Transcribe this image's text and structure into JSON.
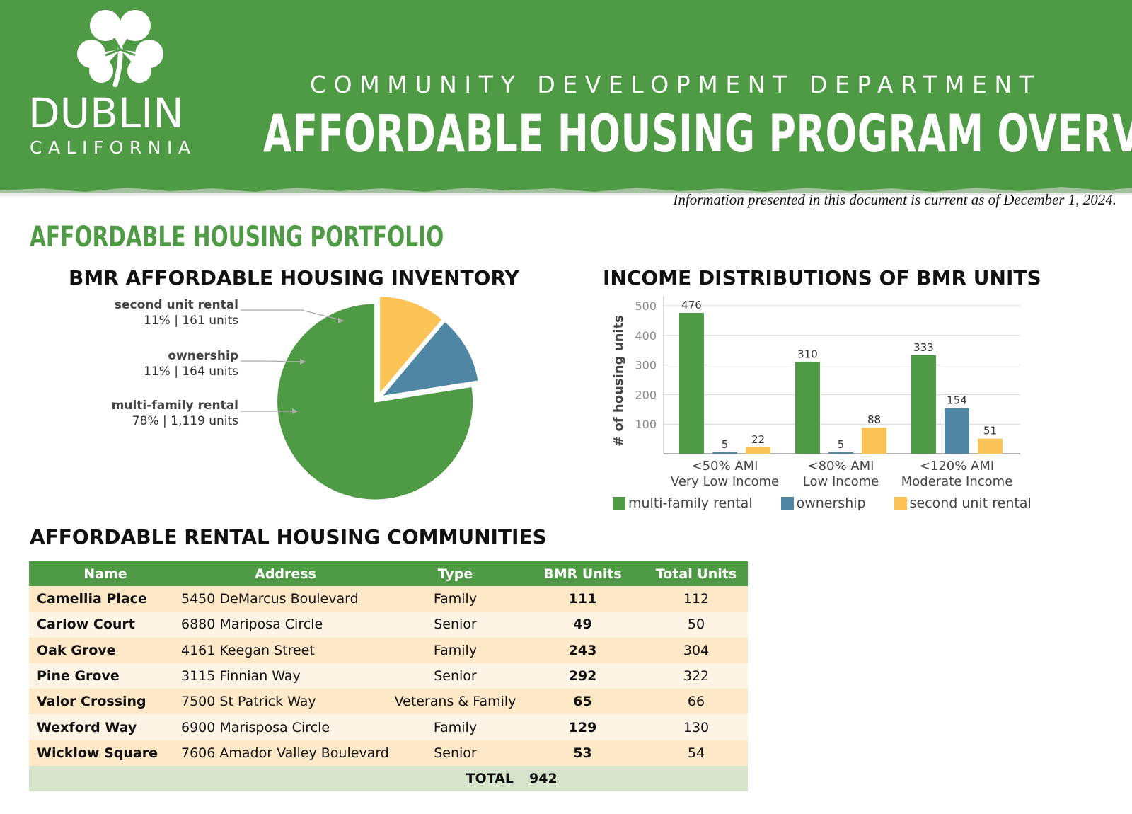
{
  "header": {
    "logo_title": "DUBLIN",
    "logo_subtitle": "CALIFORNIA",
    "department": "COMMUNITY DEVELOPMENT DEPARTMENT",
    "title": "AFFORDABLE HOUSING PROGRAM OVERVIEW"
  },
  "info_note": "Information presented in this document is current as of December 1, 2024.",
  "section_title": "AFFORDABLE HOUSING PORTFOLIO",
  "colors": {
    "green": "#4f9a45",
    "blue": "#4f86a3",
    "yellow": "#fcc357"
  },
  "chart_data": [
    {
      "type": "pie",
      "title": "BMR AFFORDABLE HOUSING INVENTORY",
      "slices": [
        {
          "name": "second unit rental",
          "percent_label": "11%",
          "units_label": "161 units",
          "value": 161,
          "color": "#fcc357"
        },
        {
          "name": "ownership",
          "percent_label": "11%",
          "units_label": "164 units",
          "value": 164,
          "color": "#4f86a3"
        },
        {
          "name": "multi-family rental",
          "percent_label": "78%",
          "units_label": "1,119 units",
          "value": 1119,
          "color": "#4f9a45"
        }
      ],
      "separator": "|"
    },
    {
      "type": "bar",
      "title": "INCOME DISTRIBUTIONS OF BMR UNITS",
      "ylabel": "# of housing units",
      "ylim": [
        0,
        500
      ],
      "yticks": [
        100,
        200,
        300,
        400,
        500
      ],
      "categories": [
        [
          "<50% AMI",
          "Very Low Income"
        ],
        [
          "<80% AMI",
          "Low Income"
        ],
        [
          "<120% AMI",
          "Moderate Income"
        ]
      ],
      "series": [
        {
          "name": "multi-family rental",
          "color": "#4f9a45",
          "values": [
            476,
            310,
            333
          ]
        },
        {
          "name": "ownership",
          "color": "#4f86a3",
          "values": [
            5,
            5,
            154
          ]
        },
        {
          "name": "second unit rental",
          "color": "#fcc357",
          "values": [
            22,
            88,
            51
          ]
        }
      ]
    }
  ],
  "table": {
    "title": "AFFORDABLE RENTAL HOUSING COMMUNITIES",
    "headers": [
      "Name",
      "Address",
      "Type",
      "BMR Units",
      "Total Units"
    ],
    "rows": [
      [
        "Camellia Place",
        "5450 DeMarcus Boulevard",
        "Family",
        "111",
        "112"
      ],
      [
        "Carlow Court",
        "6880 Mariposa Circle",
        "Senior",
        "49",
        "50"
      ],
      [
        "Oak Grove",
        "4161 Keegan Street",
        "Family",
        "243",
        "304"
      ],
      [
        "Pine Grove",
        "3115 Finnian Way",
        "Senior",
        "292",
        "322"
      ],
      [
        "Valor Crossing",
        "7500 St Patrick Way",
        "Veterans & Family",
        "65",
        "66"
      ],
      [
        "Wexford Way",
        "6900 Marisposa Circle",
        "Family",
        "129",
        "130"
      ],
      [
        "Wicklow Square",
        "7606 Amador Valley Boulevard",
        "Senior",
        "53",
        "54"
      ]
    ],
    "total_label": "TOTAL",
    "total_value": "942"
  }
}
